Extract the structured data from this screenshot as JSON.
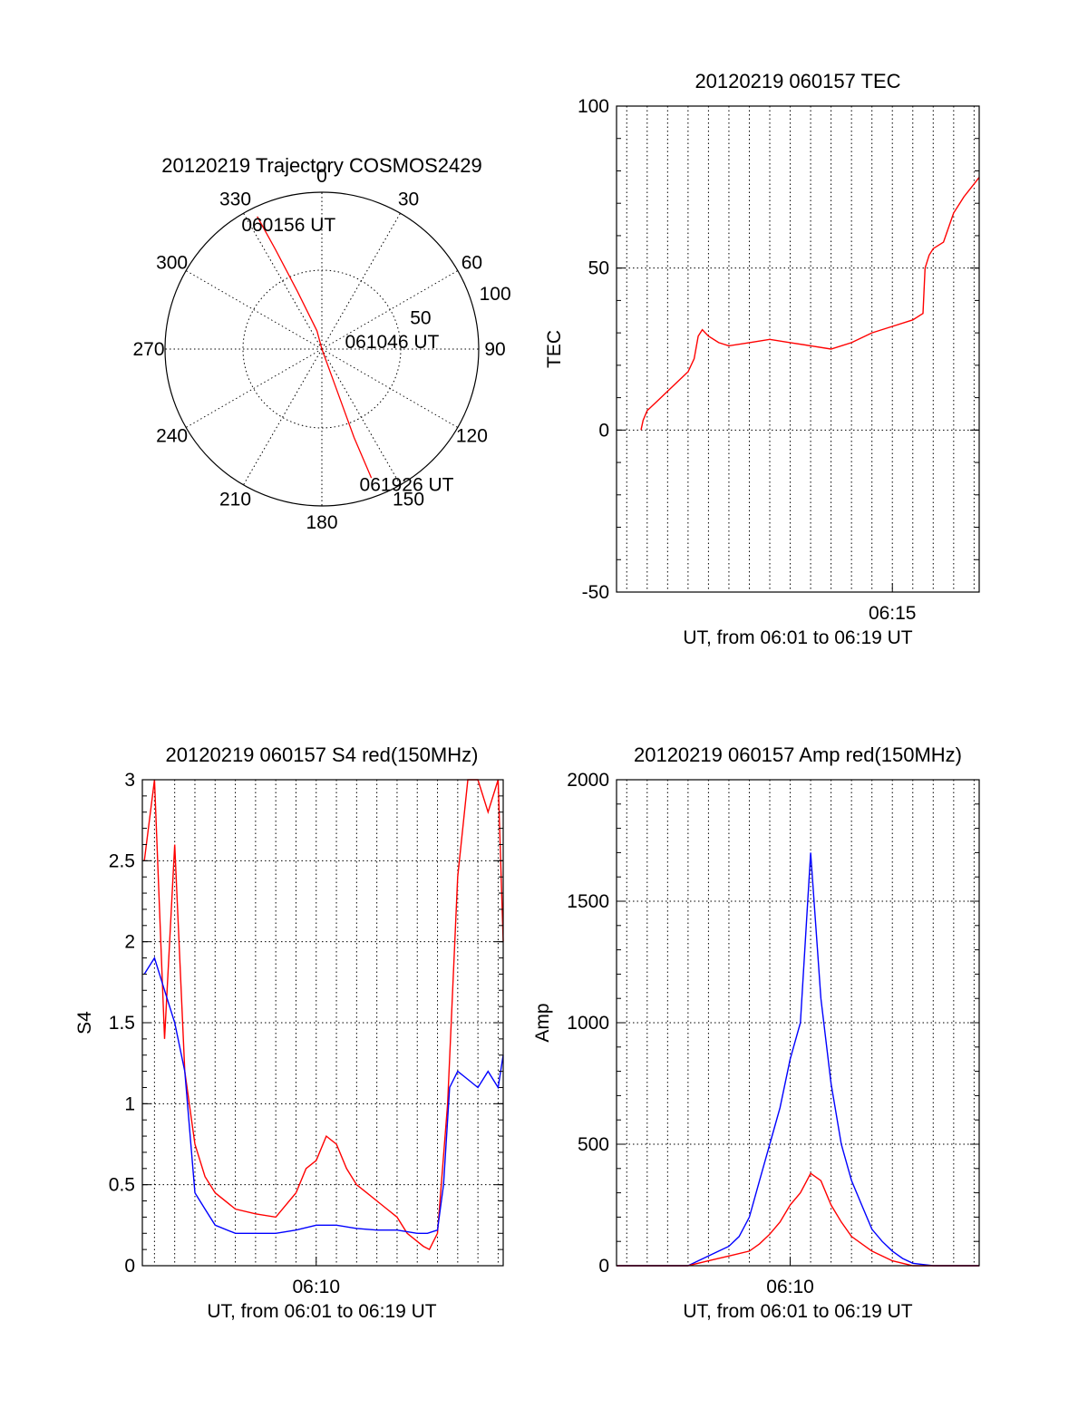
{
  "chart_data": [
    {
      "type": "polar",
      "title": "20120219 Trajectory COSMOS2429",
      "angle_labels": [
        "0",
        "30",
        "60",
        "90",
        "120",
        "150",
        "180",
        "210",
        "240",
        "270",
        "300",
        "330"
      ],
      "radius_labels": [
        "50",
        "100"
      ],
      "rlim": [
        0,
        100
      ],
      "track_color": "#ff0000",
      "track": [
        {
          "az": 334,
          "el_radius": 94
        },
        {
          "az": 335,
          "el_radius": 70
        },
        {
          "az": 337,
          "el_radius": 40
        },
        {
          "az": 345,
          "el_radius": 12
        },
        {
          "az": 0,
          "el_radius": 0
        },
        {
          "az": 160,
          "el_radius": 18
        },
        {
          "az": 160,
          "el_radius": 60
        },
        {
          "az": 159,
          "el_radius": 88
        }
      ],
      "annotations": [
        {
          "text": "060156 UT",
          "az": 345,
          "el_radius": 82
        },
        {
          "text": "061046 UT",
          "az": 84,
          "el_radius": 45
        },
        {
          "text": "061926 UT",
          "az": 148,
          "el_radius": 102
        }
      ],
      "grid": true
    },
    {
      "type": "line",
      "title": "20120219 060157 TEC",
      "xlabel": "UT, from 06:01 to 06:19 UT",
      "ylabel": "TEC",
      "xlim": [
        1.5,
        19.25
      ],
      "ylim": [
        -50,
        100
      ],
      "xtick_labels": [
        {
          "x": 15,
          "label": "06:15"
        }
      ],
      "ytick_labels": [
        "-50",
        "0",
        "50",
        "100"
      ],
      "grid": true,
      "series": [
        {
          "color": "#ff0000",
          "x": [
            2.7,
            2.8,
            3.0,
            3.5,
            4.0,
            4.5,
            5.0,
            5.3,
            5.5,
            5.7,
            6.0,
            6.5,
            7.0,
            8.0,
            9.0,
            10.0,
            11.0,
            12.0,
            13.0,
            14.0,
            15.0,
            16.0,
            16.5,
            16.6,
            16.8,
            17.0,
            17.5,
            18.0,
            18.3,
            18.5,
            19.0,
            19.25
          ],
          "y": [
            0,
            3,
            6,
            9,
            12,
            15,
            18,
            22,
            29,
            31,
            29,
            27,
            26,
            27,
            28,
            27,
            26,
            25,
            27,
            30,
            32,
            34,
            36,
            50,
            54,
            56,
            58,
            67,
            70,
            72,
            76,
            78
          ]
        }
      ]
    },
    {
      "type": "line",
      "title": "20120219 060157 S4 red(150MHz)",
      "xlabel": "UT, from 06:01 to 06:19 UT",
      "ylabel": "S4",
      "xlim": [
        1.4,
        19.25
      ],
      "ylim": [
        0,
        3
      ],
      "xtick_labels": [
        {
          "x": 10,
          "label": "06:10"
        }
      ],
      "ytick_labels": [
        "0",
        "0.5",
        "1",
        "1.5",
        "2",
        "2.5",
        "3"
      ],
      "grid": true,
      "series": [
        {
          "color": "#ff0000",
          "x": [
            1.5,
            2.0,
            2.5,
            3.0,
            3.5,
            4.0,
            4.5,
            5.0,
            6.0,
            7.0,
            8.0,
            9.0,
            9.5,
            10.0,
            10.5,
            11.0,
            11.5,
            12.0,
            12.5,
            13.0,
            13.5,
            14.0,
            14.5,
            15.0,
            15.3,
            15.6,
            16.0,
            16.5,
            17.0,
            17.5,
            18.0,
            18.5,
            19.0,
            19.25
          ],
          "y": [
            2.5,
            3.0,
            1.4,
            2.6,
            1.2,
            0.75,
            0.55,
            0.45,
            0.35,
            0.32,
            0.3,
            0.45,
            0.6,
            0.65,
            0.8,
            0.75,
            0.6,
            0.5,
            0.45,
            0.4,
            0.35,
            0.3,
            0.2,
            0.15,
            0.12,
            0.1,
            0.2,
            1.0,
            2.4,
            3.0,
            3.0,
            2.8,
            3.0,
            2.0
          ]
        },
        {
          "color": "#0000ff",
          "x": [
            1.5,
            2.0,
            2.5,
            3.0,
            3.5,
            4.0,
            4.5,
            5.0,
            6.0,
            7.0,
            8.0,
            9.0,
            10.0,
            11.0,
            12.0,
            13.0,
            14.0,
            15.0,
            15.5,
            16.0,
            16.3,
            16.6,
            17.0,
            17.5,
            18.0,
            18.5,
            19.0,
            19.25
          ],
          "y": [
            1.8,
            1.9,
            1.7,
            1.5,
            1.2,
            0.45,
            0.35,
            0.25,
            0.2,
            0.2,
            0.2,
            0.22,
            0.25,
            0.25,
            0.23,
            0.22,
            0.22,
            0.2,
            0.2,
            0.22,
            0.5,
            1.1,
            1.2,
            1.15,
            1.1,
            1.2,
            1.1,
            1.3
          ]
        }
      ]
    },
    {
      "type": "line",
      "title": "20120219 060157 Amp red(150MHz)",
      "xlabel": "UT, from 06:01 to 06:19 UT",
      "ylabel": "Amp",
      "xlim": [
        1.5,
        19.25
      ],
      "ylim": [
        0,
        2000
      ],
      "xtick_labels": [
        {
          "x": 10,
          "label": "06:10"
        }
      ],
      "ytick_labels": [
        "0",
        "500",
        "1000",
        "1500",
        "2000"
      ],
      "grid": true,
      "series": [
        {
          "color": "#0000ff",
          "x": [
            1.5,
            3.0,
            5.0,
            5.5,
            6.0,
            6.5,
            7.0,
            7.5,
            8.0,
            8.5,
            9.0,
            9.5,
            10.0,
            10.5,
            11.0,
            11.5,
            12.0,
            12.5,
            13.0,
            13.5,
            14.0,
            14.5,
            15.0,
            15.5,
            16.0,
            17.0,
            18.0,
            19.25
          ],
          "y": [
            0,
            0,
            0,
            20,
            40,
            60,
            80,
            120,
            200,
            350,
            500,
            650,
            850,
            1000,
            1700,
            1100,
            750,
            500,
            350,
            250,
            150,
            100,
            60,
            30,
            10,
            0,
            0,
            0
          ]
        },
        {
          "color": "#ff0000",
          "x": [
            1.5,
            3.0,
            5.0,
            6.0,
            7.0,
            8.0,
            8.5,
            9.0,
            9.5,
            10.0,
            10.5,
            11.0,
            11.5,
            12.0,
            12.5,
            13.0,
            14.0,
            15.0,
            16.0,
            19.25
          ],
          "y": [
            0,
            0,
            0,
            20,
            40,
            60,
            90,
            130,
            180,
            250,
            300,
            380,
            350,
            250,
            180,
            120,
            60,
            20,
            0,
            0
          ]
        }
      ]
    }
  ]
}
